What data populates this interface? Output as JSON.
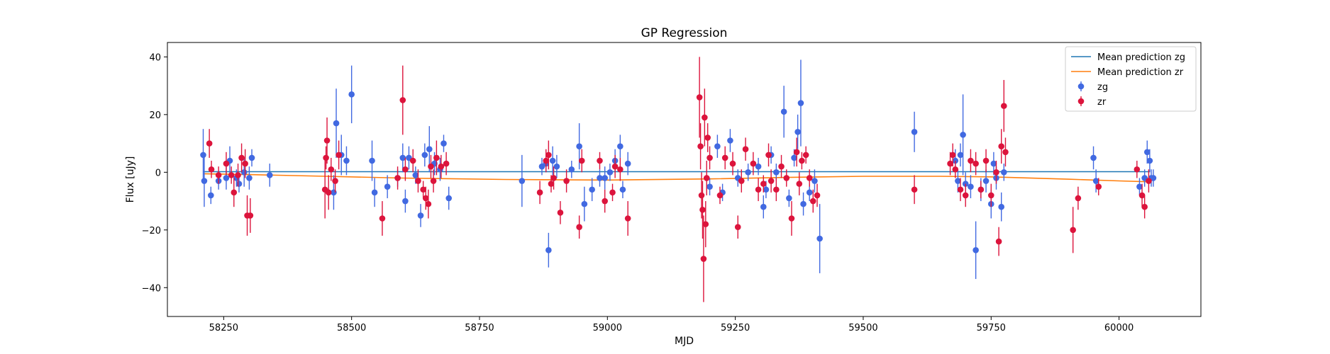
{
  "chart_data": {
    "type": "scatter",
    "title": "GP Regression",
    "xlabel": "MJD",
    "ylabel": "Flux [uJy]",
    "xlim": [
      58140,
      60160
    ],
    "ylim": [
      -50,
      45
    ],
    "xticks": [
      58250,
      58500,
      58750,
      59000,
      59250,
      59500,
      59750,
      60000
    ],
    "yticks": [
      -40,
      -20,
      0,
      20,
      40
    ],
    "legend_position": "upper right",
    "lines": [
      {
        "name": "Mean prediction zg",
        "color": "#1f77b4",
        "points": [
          [
            58210,
            0.2
          ],
          [
            60060,
            0.2
          ]
        ]
      },
      {
        "name": "Mean prediction zr",
        "color": "#ff7f0e",
        "points": [
          [
            58210,
            -0.5
          ],
          [
            58300,
            -0.8
          ],
          [
            58450,
            -1.4
          ],
          [
            58600,
            -2.0
          ],
          [
            58800,
            -2.5
          ],
          [
            59000,
            -2.7
          ],
          [
            59200,
            -2.3
          ],
          [
            59350,
            -1.8
          ],
          [
            59500,
            -1.4
          ],
          [
            59650,
            -1.4
          ],
          [
            59750,
            -1.6
          ],
          [
            59900,
            -2.4
          ],
          [
            60000,
            -3.0
          ],
          [
            60060,
            -3.3
          ]
        ]
      }
    ],
    "series": [
      {
        "name": "zg",
        "color": "#4169e1",
        "marker": "circle",
        "points": [
          [
            58210,
            6,
            9
          ],
          [
            58212,
            -3,
            9
          ],
          [
            58225,
            -8,
            3
          ],
          [
            58240,
            -3,
            3
          ],
          [
            58255,
            -2,
            4
          ],
          [
            58262,
            4,
            5
          ],
          [
            58275,
            -2,
            3
          ],
          [
            58280,
            -4,
            3
          ],
          [
            58290,
            0,
            5
          ],
          [
            58300,
            -2,
            4
          ],
          [
            58305,
            5,
            3
          ],
          [
            58340,
            -1,
            4
          ],
          [
            58465,
            -7,
            6
          ],
          [
            58470,
            17,
            12
          ],
          [
            58480,
            6,
            7
          ],
          [
            58490,
            4,
            5
          ],
          [
            58500,
            27,
            10
          ],
          [
            58540,
            4,
            7
          ],
          [
            58545,
            -7,
            5
          ],
          [
            58570,
            -5,
            4
          ],
          [
            58590,
            -2,
            3
          ],
          [
            58600,
            5,
            5
          ],
          [
            58605,
            -10,
            4
          ],
          [
            58612,
            5,
            4
          ],
          [
            58625,
            -1,
            3
          ],
          [
            58635,
            -15,
            4
          ],
          [
            58643,
            6,
            4
          ],
          [
            58652,
            8,
            8
          ],
          [
            58662,
            3,
            4
          ],
          [
            58673,
            1,
            4
          ],
          [
            58680,
            10,
            3
          ],
          [
            58690,
            -9,
            4
          ],
          [
            58833,
            -3,
            9
          ],
          [
            58872,
            2,
            3
          ],
          [
            58880,
            3,
            3
          ],
          [
            58885,
            -27,
            6
          ],
          [
            58893,
            4,
            5
          ],
          [
            58901,
            2,
            4
          ],
          [
            58930,
            1,
            3
          ],
          [
            58945,
            9,
            8
          ],
          [
            58955,
            -11,
            6
          ],
          [
            58970,
            -6,
            4
          ],
          [
            58985,
            -2,
            3
          ],
          [
            58995,
            -2,
            4
          ],
          [
            59005,
            0,
            3
          ],
          [
            59015,
            4,
            4
          ],
          [
            59025,
            9,
            4
          ],
          [
            59030,
            -6,
            3
          ],
          [
            59040,
            3,
            4
          ],
          [
            59200,
            -5,
            3
          ],
          [
            59215,
            9,
            4
          ],
          [
            59225,
            -7,
            3
          ],
          [
            59240,
            11,
            4
          ],
          [
            59255,
            -2,
            3
          ],
          [
            59275,
            0,
            3
          ],
          [
            59295,
            2,
            3
          ],
          [
            59305,
            -12,
            4
          ],
          [
            59310,
            -6,
            3
          ],
          [
            59320,
            6,
            3
          ],
          [
            59330,
            0,
            3
          ],
          [
            59345,
            21,
            9
          ],
          [
            59355,
            -9,
            3
          ],
          [
            59365,
            5,
            3
          ],
          [
            59372,
            14,
            6
          ],
          [
            59378,
            24,
            15
          ],
          [
            59383,
            -11,
            4
          ],
          [
            59395,
            -7,
            3
          ],
          [
            59405,
            -3,
            4
          ],
          [
            59415,
            -23,
            12
          ],
          [
            59600,
            14,
            7
          ],
          [
            59680,
            4,
            4
          ],
          [
            59685,
            -3,
            4
          ],
          [
            59690,
            6,
            4
          ],
          [
            59695,
            13,
            14
          ],
          [
            59700,
            -4,
            4
          ],
          [
            59710,
            -5,
            4
          ],
          [
            59720,
            -27,
            10
          ],
          [
            59730,
            -6,
            4
          ],
          [
            59740,
            -3,
            4
          ],
          [
            59750,
            -11,
            5
          ],
          [
            59755,
            3,
            4
          ],
          [
            59760,
            -2,
            4
          ],
          [
            59770,
            -12,
            5
          ],
          [
            59775,
            0,
            3
          ],
          [
            59950,
            5,
            4
          ],
          [
            59955,
            -3,
            4
          ],
          [
            60040,
            -5,
            3
          ],
          [
            60050,
            -2,
            3
          ],
          [
            60055,
            7,
            4
          ],
          [
            60060,
            4,
            4
          ],
          [
            60063,
            -2,
            3
          ],
          [
            60067,
            -2,
            3
          ]
        ]
      },
      {
        "name": "zr",
        "color": "#dc143c",
        "marker": "circle",
        "points": [
          [
            58222,
            10,
            5
          ],
          [
            58226,
            1,
            3
          ],
          [
            58240,
            -1,
            3
          ],
          [
            58255,
            3,
            4
          ],
          [
            58265,
            -1,
            3
          ],
          [
            58270,
            -7,
            5
          ],
          [
            58278,
            -1,
            4
          ],
          [
            58285,
            5,
            5
          ],
          [
            58292,
            3,
            5
          ],
          [
            58296,
            -15,
            7
          ],
          [
            58302,
            -15,
            6
          ],
          [
            58448,
            -6,
            10
          ],
          [
            58450,
            5,
            4
          ],
          [
            58452,
            11,
            8
          ],
          [
            58455,
            -7,
            6
          ],
          [
            58460,
            1,
            4
          ],
          [
            58468,
            -3,
            4
          ],
          [
            58475,
            6,
            5
          ],
          [
            58560,
            -16,
            6
          ],
          [
            58590,
            -2,
            4
          ],
          [
            58600,
            25,
            12
          ],
          [
            58605,
            1,
            4
          ],
          [
            58620,
            4,
            4
          ],
          [
            58630,
            -3,
            4
          ],
          [
            58640,
            -6,
            3
          ],
          [
            58645,
            -9,
            4
          ],
          [
            58650,
            -11,
            5
          ],
          [
            58655,
            2,
            4
          ],
          [
            58660,
            -3,
            4
          ],
          [
            58666,
            5,
            6
          ],
          [
            58675,
            2,
            4
          ],
          [
            58685,
            3,
            4
          ],
          [
            58868,
            -7,
            4
          ],
          [
            58880,
            4,
            4
          ],
          [
            58885,
            6,
            5
          ],
          [
            58890,
            -4,
            3
          ],
          [
            58895,
            -2,
            4
          ],
          [
            58908,
            -14,
            4
          ],
          [
            58920,
            -3,
            4
          ],
          [
            58945,
            -19,
            4
          ],
          [
            58950,
            4,
            4
          ],
          [
            58985,
            4,
            3
          ],
          [
            58995,
            -10,
            4
          ],
          [
            59010,
            -7,
            3
          ],
          [
            59015,
            2,
            4
          ],
          [
            59025,
            1,
            4
          ],
          [
            59040,
            -16,
            6
          ],
          [
            59180,
            26,
            14
          ],
          [
            59182,
            9,
            8
          ],
          [
            59184,
            -8,
            8
          ],
          [
            59186,
            -13,
            10
          ],
          [
            59188,
            -30,
            15
          ],
          [
            59190,
            19,
            10
          ],
          [
            59192,
            -18,
            8
          ],
          [
            59194,
            -2,
            6
          ],
          [
            59196,
            12,
            5
          ],
          [
            59200,
            5,
            4
          ],
          [
            59220,
            -8,
            3
          ],
          [
            59230,
            5,
            4
          ],
          [
            59245,
            3,
            4
          ],
          [
            59255,
            -19,
            4
          ],
          [
            59262,
            -3,
            4
          ],
          [
            59270,
            8,
            4
          ],
          [
            59285,
            3,
            4
          ],
          [
            59295,
            -6,
            4
          ],
          [
            59305,
            -4,
            3
          ],
          [
            59315,
            6,
            4
          ],
          [
            59320,
            -3,
            4
          ],
          [
            59330,
            -6,
            4
          ],
          [
            59340,
            2,
            4
          ],
          [
            59350,
            -2,
            3
          ],
          [
            59360,
            -16,
            6
          ],
          [
            59370,
            7,
            5
          ],
          [
            59375,
            -4,
            4
          ],
          [
            59380,
            4,
            3
          ],
          [
            59388,
            6,
            3
          ],
          [
            59395,
            -2,
            3
          ],
          [
            59402,
            -10,
            4
          ],
          [
            59410,
            -8,
            4
          ],
          [
            59600,
            -6,
            5
          ],
          [
            59670,
            3,
            4
          ],
          [
            59675,
            6,
            4
          ],
          [
            59680,
            1,
            3
          ],
          [
            59690,
            -6,
            4
          ],
          [
            59700,
            -8,
            4
          ],
          [
            59710,
            4,
            4
          ],
          [
            59720,
            3,
            4
          ],
          [
            59730,
            -6,
            3
          ],
          [
            59740,
            4,
            4
          ],
          [
            59750,
            -8,
            4
          ],
          [
            59760,
            0,
            4
          ],
          [
            59765,
            -24,
            5
          ],
          [
            59770,
            9,
            6
          ],
          [
            59775,
            23,
            9
          ],
          [
            59778,
            7,
            5
          ],
          [
            59910,
            -20,
            8
          ],
          [
            59920,
            -9,
            4
          ],
          [
            59960,
            -5,
            3
          ],
          [
            60035,
            1,
            3
          ],
          [
            60045,
            -8,
            4
          ],
          [
            60050,
            -12,
            4
          ],
          [
            60058,
            -3,
            4
          ]
        ]
      }
    ]
  }
}
